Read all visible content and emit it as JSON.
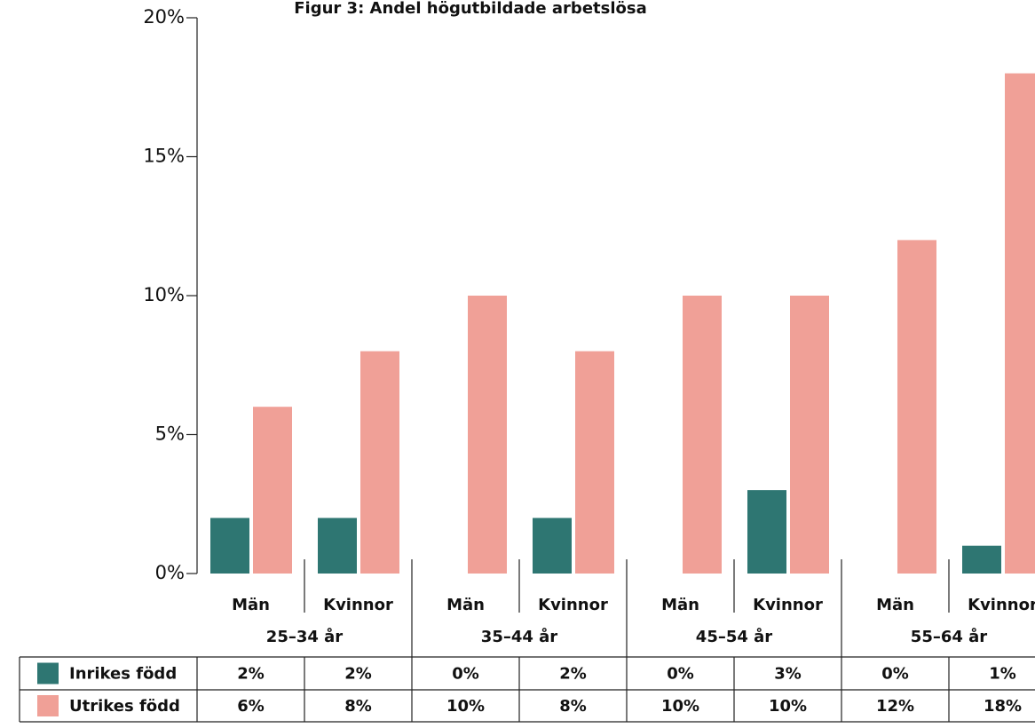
{
  "chart_data": {
    "type": "bar",
    "title": "Figur 3: Andel högutbildade arbetslösa",
    "categories": [
      "Män",
      "Kvinnor",
      "Män",
      "Kvinnor",
      "Män",
      "Kvinnor",
      "Män",
      "Kvinnor"
    ],
    "category_groups": [
      "25–34 år",
      "35–44 år",
      "45–54 år",
      "55–64 år"
    ],
    "series": [
      {
        "name": "Inrikes född",
        "color": "#2e7672",
        "values": [
          2,
          2,
          0,
          2,
          0,
          3,
          0,
          1
        ],
        "value_labels": [
          "2%",
          "2%",
          "0%",
          "2%",
          "0%",
          "3%",
          "0%",
          "1%"
        ]
      },
      {
        "name": "Utrikes född",
        "color": "#f0a097",
        "values": [
          6,
          8,
          10,
          8,
          10,
          10,
          12,
          18
        ],
        "value_labels": [
          "6%",
          "8%",
          "10%",
          "8%",
          "10%",
          "10%",
          "12%",
          "18%"
        ]
      }
    ],
    "ylim": [
      0,
      20
    ],
    "yticks": [
      {
        "value": 0,
        "label": "0%"
      },
      {
        "value": 5,
        "label": "5%"
      },
      {
        "value": 10,
        "label": "10%"
      },
      {
        "value": 15,
        "label": "15%"
      },
      {
        "value": 20,
        "label": "20%"
      }
    ]
  }
}
